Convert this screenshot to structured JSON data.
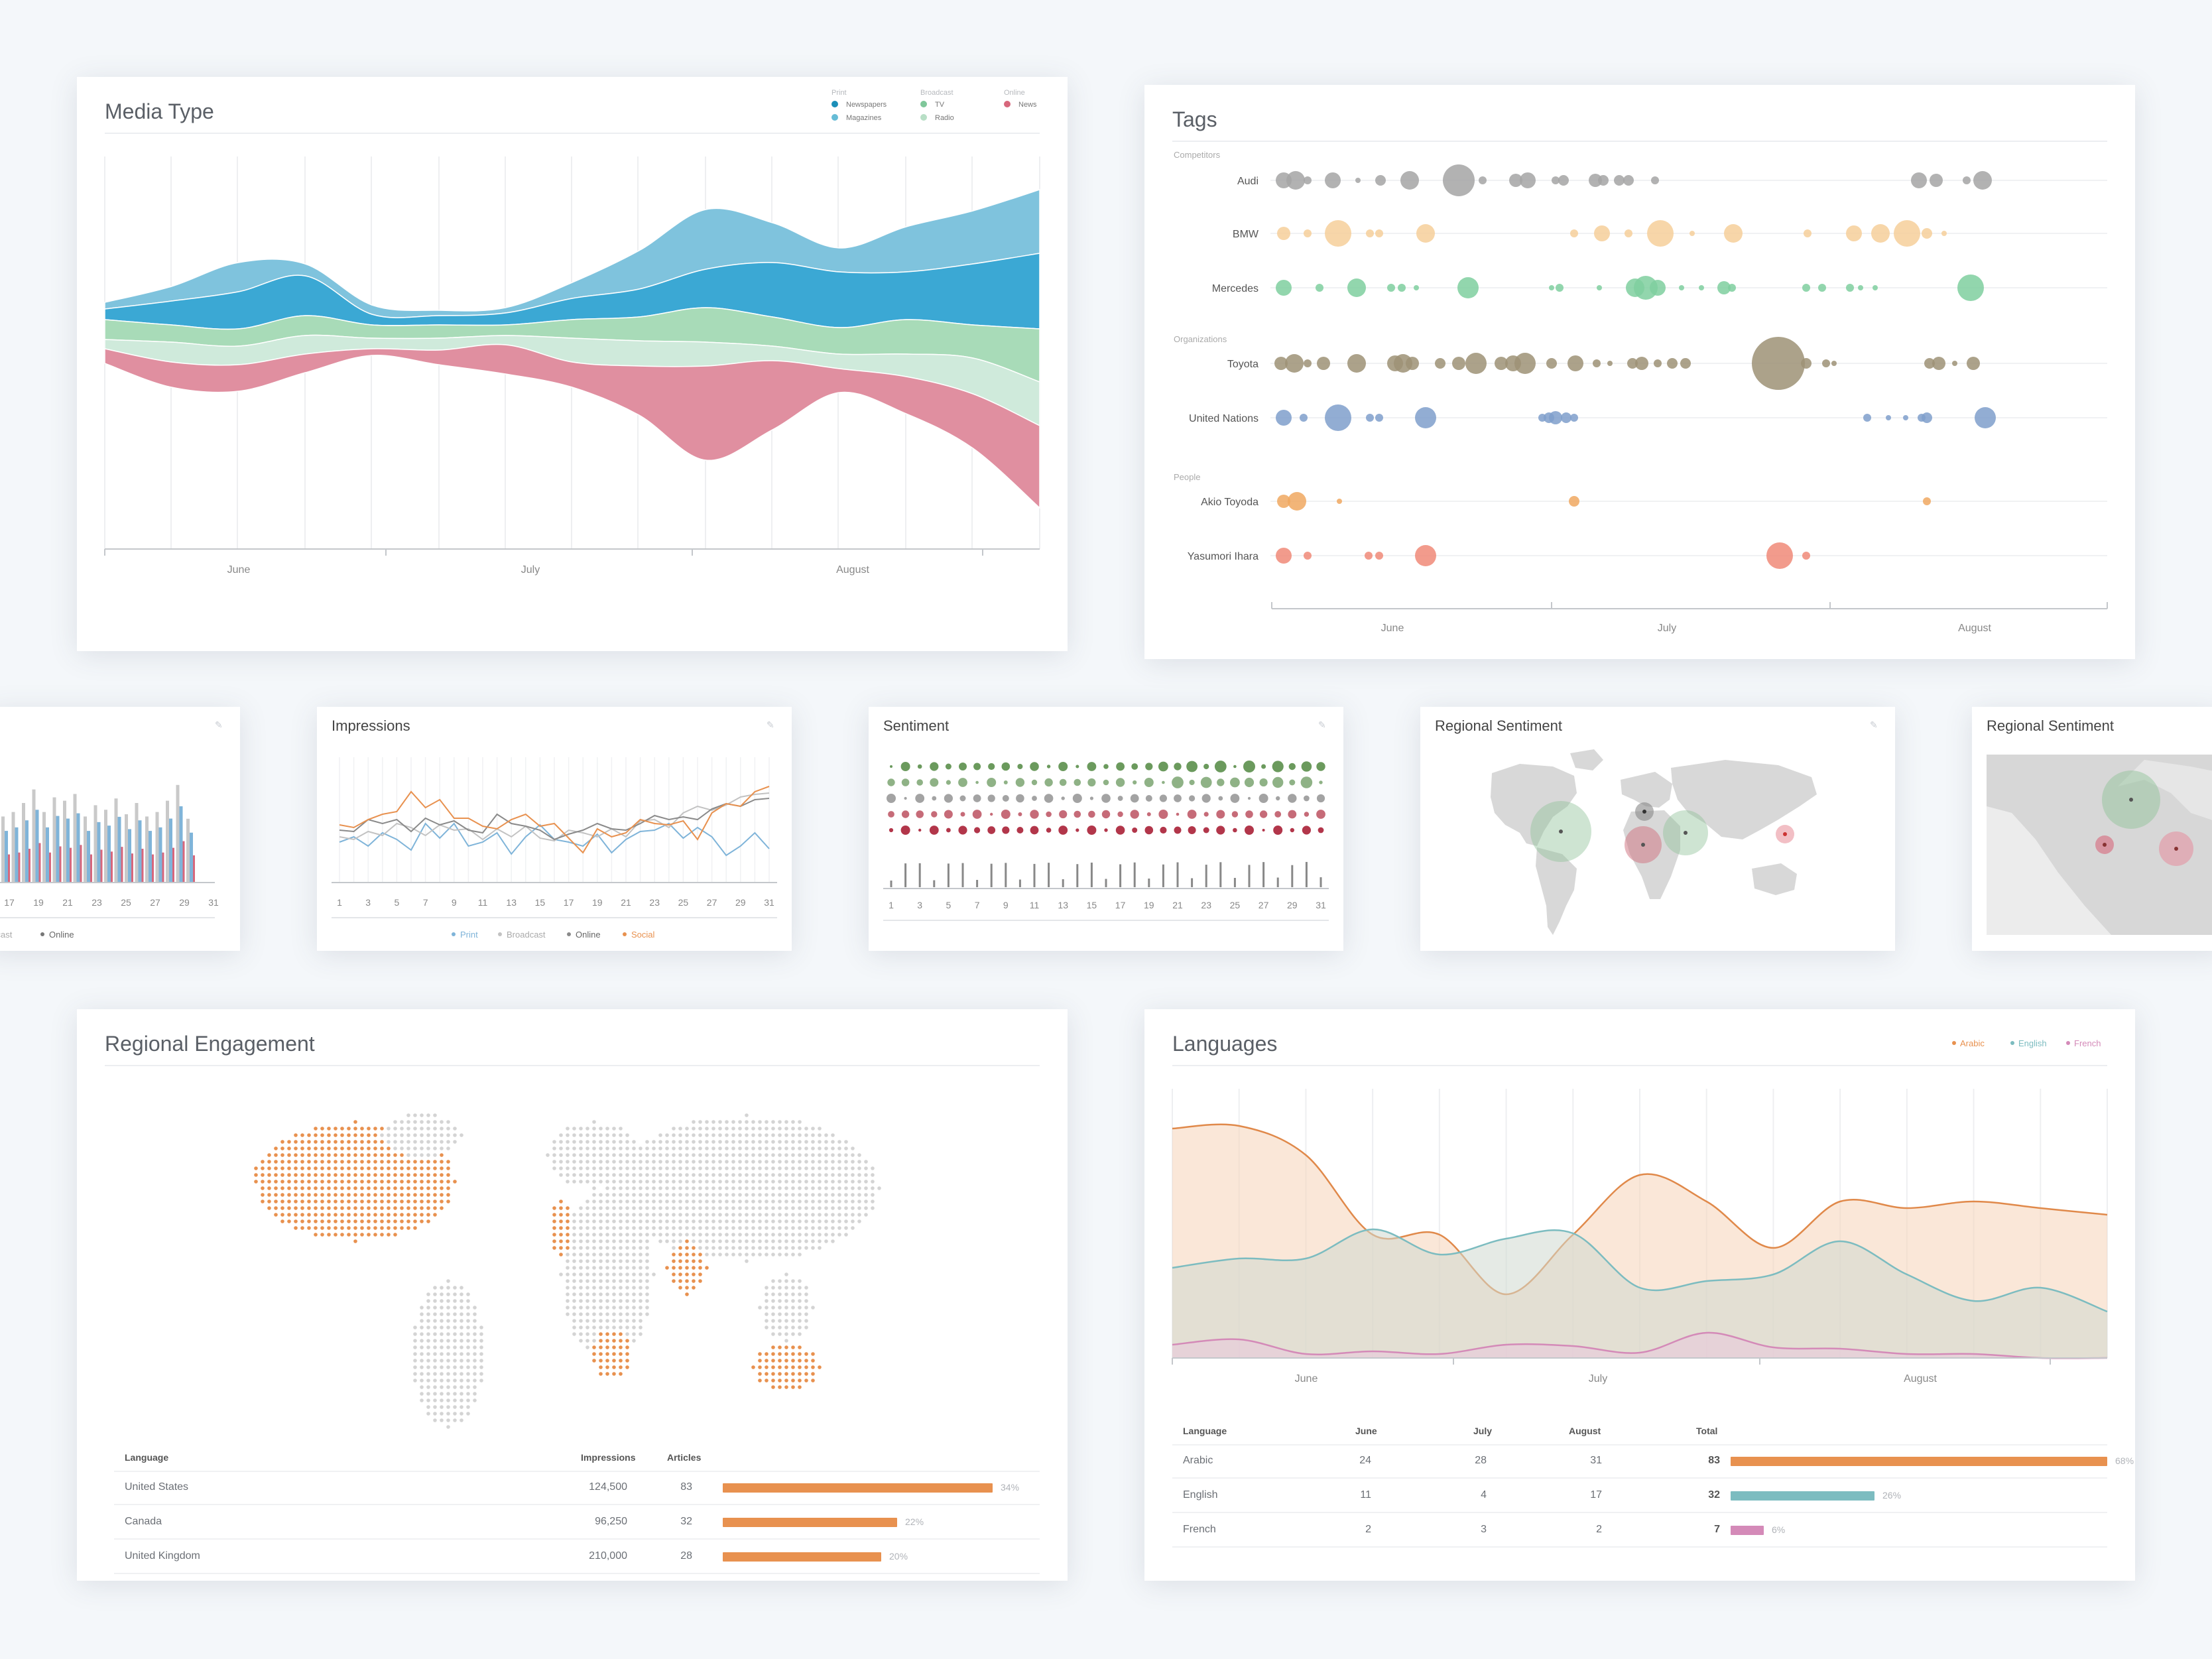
{
  "colors": {
    "newspapers": "#1b8fb8",
    "magazines": "#66bcd6",
    "tv": "#93d1a8",
    "radio": "#c8e6d2",
    "news": "#d7677c",
    "grey_dot": "#aaaaaa",
    "orange": "#e8914f",
    "teal": "#7cbcc0",
    "pink": "#d48ab8",
    "blue_line": "#7fb4d9"
  },
  "media_type": {
    "title": "Media Type",
    "legend": {
      "groups": [
        {
          "label": "Print",
          "items": [
            {
              "label": "Newspapers",
              "color": "#1b8fb8"
            },
            {
              "label": "Magazines",
              "color": "#66bcd6"
            }
          ]
        },
        {
          "label": "Broadcast",
          "items": [
            {
              "label": "TV",
              "color": "#7fc79a"
            },
            {
              "label": "Radio",
              "color": "#b8dfc6"
            }
          ]
        },
        {
          "label": "Online",
          "items": [
            {
              "label": "News",
              "color": "#d7677c"
            }
          ]
        }
      ]
    },
    "months": [
      "June",
      "July",
      "August"
    ]
  },
  "tags": {
    "title": "Tags",
    "groups": [
      {
        "label": "Competitors",
        "rows": [
          {
            "label": "Audi",
            "color": "#a5a5a5"
          },
          {
            "label": "BMW",
            "color": "#f6cf9a"
          },
          {
            "label": "Mercedes",
            "color": "#7fcf9f"
          }
        ]
      },
      {
        "label": "Organizations",
        "rows": [
          {
            "label": "Toyota",
            "color": "#9d9275"
          },
          {
            "label": "United Nations",
            "color": "#7f9fcb"
          }
        ]
      },
      {
        "label": "People",
        "rows": [
          {
            "label": "Akio Toyoda",
            "color": "#f0a860"
          },
          {
            "label": "Yasumori Ihara",
            "color": "#f08a78"
          }
        ]
      }
    ],
    "months": [
      "June",
      "July",
      "August"
    ]
  },
  "partial_bar": {
    "x_ticks": [
      "17",
      "19",
      "21",
      "23",
      "25",
      "27",
      "29",
      "31"
    ],
    "legend": [
      {
        "label": "adcast",
        "color": "#c9c9c9"
      },
      {
        "label": "Online",
        "color": "#777777"
      }
    ]
  },
  "impressions": {
    "title": "Impressions",
    "x_ticks": [
      "1",
      "3",
      "5",
      "7",
      "9",
      "11",
      "13",
      "15",
      "17",
      "19",
      "21",
      "23",
      "25",
      "27",
      "29",
      "31"
    ],
    "legend": [
      {
        "label": "Print",
        "color": "#7fb4d9"
      },
      {
        "label": "Broadcast",
        "color": "#c2c2c2"
      },
      {
        "label": "Online",
        "color": "#8a8a8a"
      },
      {
        "label": "Social",
        "color": "#e8914f"
      }
    ]
  },
  "sentiment": {
    "title": "Sentiment",
    "x_ticks": [
      "1",
      "3",
      "5",
      "7",
      "9",
      "11",
      "13",
      "15",
      "17",
      "19",
      "21",
      "23",
      "25",
      "27",
      "29",
      "31"
    ]
  },
  "regional_sentiment_1": {
    "title": "Regional Sentiment"
  },
  "regional_sentiment_2": {
    "title": "Regional Sentiment"
  },
  "regional_engagement": {
    "title": "Regional Engagement",
    "table": {
      "headers": [
        "Language",
        "Impressions",
        "Articles"
      ],
      "rows": [
        {
          "name": "United States",
          "impressions": "124,500",
          "articles": "83",
          "pct": "34%",
          "fraction": 0.34
        },
        {
          "name": "Canada",
          "impressions": "96,250",
          "articles": "32",
          "pct": "22%",
          "fraction": 0.22
        },
        {
          "name": "United Kingdom",
          "impressions": "210,000",
          "articles": "28",
          "pct": "20%",
          "fraction": 0.2
        }
      ]
    }
  },
  "languages": {
    "title": "Languages",
    "legend": [
      {
        "label": "Arabic",
        "color": "#e8914f"
      },
      {
        "label": "English",
        "color": "#7cbcc0"
      },
      {
        "label": "French",
        "color": "#d48ab8"
      }
    ],
    "months": [
      "June",
      "July",
      "August"
    ],
    "table": {
      "headers": [
        "Language",
        "June",
        "July",
        "August",
        "Total"
      ],
      "rows": [
        {
          "name": "Arabic",
          "june": "24",
          "july": "28",
          "august": "31",
          "total": "83",
          "pct": "68%",
          "fraction": 0.68,
          "color": "#e8914f"
        },
        {
          "name": "English",
          "june": "11",
          "july": "4",
          "august": "17",
          "total": "32",
          "pct": "26%",
          "fraction": 0.26,
          "color": "#7cbcc0"
        },
        {
          "name": "French",
          "june": "2",
          "july": "3",
          "august": "2",
          "total": "7",
          "pct": "6%",
          "fraction": 0.06,
          "color": "#d48ab8"
        }
      ]
    }
  },
  "chart_data": [
    {
      "type": "area",
      "title": "Media Type",
      "x": [
        "June",
        "July",
        "August"
      ],
      "series": [
        {
          "name": "Newspapers"
        },
        {
          "name": "Magazines"
        },
        {
          "name": "TV"
        },
        {
          "name": "Radio"
        },
        {
          "name": "News"
        }
      ]
    },
    {
      "type": "area",
      "title": "Languages",
      "x": [
        "June",
        "July",
        "August"
      ],
      "series": [
        {
          "name": "Arabic",
          "values": [
            24,
            28,
            31
          ]
        },
        {
          "name": "English",
          "values": [
            11,
            4,
            17
          ]
        },
        {
          "name": "French",
          "values": [
            2,
            3,
            2
          ]
        }
      ]
    },
    {
      "type": "table",
      "title": "Regional Engagement",
      "columns": [
        "Language",
        "Impressions",
        "Articles"
      ],
      "rows": [
        [
          "United States",
          124500,
          83
        ],
        [
          "Canada",
          96250,
          32
        ],
        [
          "United Kingdom",
          210000,
          28
        ]
      ]
    }
  ]
}
